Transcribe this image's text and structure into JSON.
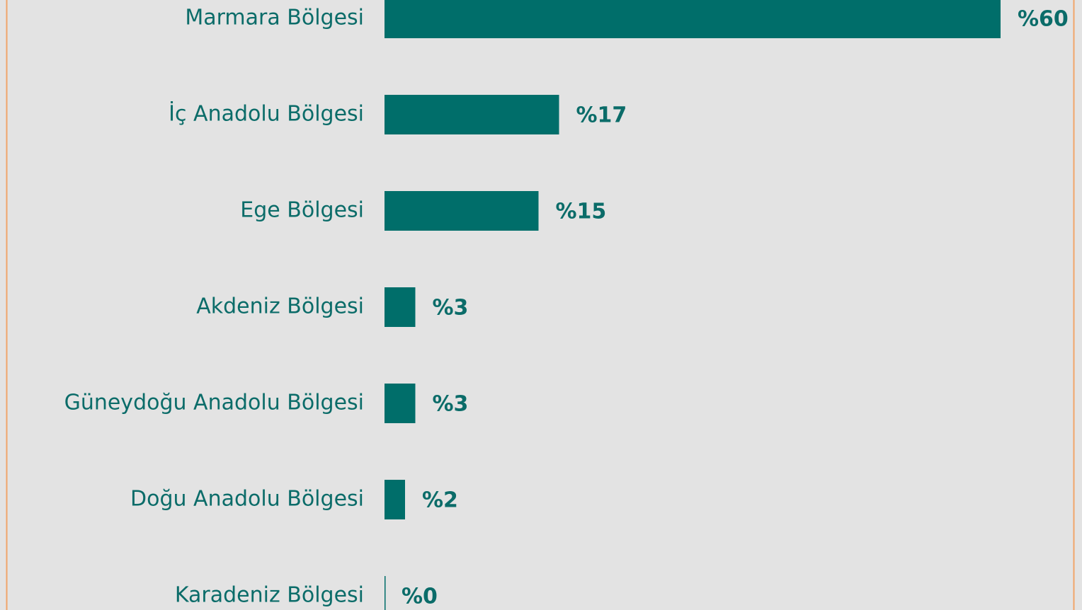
{
  "chart_data": {
    "type": "bar",
    "orientation": "horizontal",
    "categories": [
      "Marmara Bölgesi",
      "İç Anadolu Bölgesi",
      "Ege Bölgesi",
      "Akdeniz Bölgesi",
      "Güneydoğu Anadolu Bölgesi",
      "Doğu Anadolu Bölgesi",
      "Karadeniz Bölgesi"
    ],
    "values": [
      60,
      17,
      15,
      3,
      3,
      2,
      0
    ],
    "value_labels": [
      "%60",
      "%17",
      "%15",
      "%3",
      "%3",
      "%2",
      "%0"
    ],
    "color": "#006e6a"
  }
}
